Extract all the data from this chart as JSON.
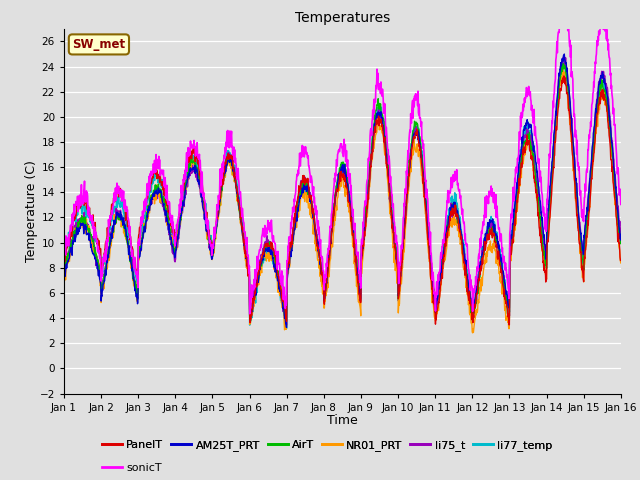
{
  "title": "Temperatures",
  "xlabel": "Time",
  "ylabel": "Temperature (C)",
  "xlim": [
    0,
    15
  ],
  "ylim": [
    -2,
    27
  ],
  "yticks": [
    -2,
    0,
    2,
    4,
    6,
    8,
    10,
    12,
    14,
    16,
    18,
    20,
    22,
    24,
    26
  ],
  "xtick_labels": [
    "Jan 1",
    "Jan 2",
    "Jan 3",
    "Jan 4",
    "Jan 5",
    "Jan 6",
    "Jan 7",
    "Jan 8",
    "Jan 9",
    "Jan 10",
    "Jan 11",
    "Jan 12",
    "Jan 13",
    "Jan 14",
    "Jan 15",
    "Jan 16"
  ],
  "annotation_text": "SW_met",
  "annotation_bg": "#ffffcc",
  "annotation_edge": "#886600",
  "annotation_text_color": "#880000",
  "bg_color": "#e0e0e0",
  "plot_bg": "#e0e0e0",
  "grid_color": "#ffffff",
  "series_colors": {
    "PanelT": "#dd0000",
    "AM25T_PRT": "#0000cc",
    "AirT": "#00bb00",
    "NR01_PRT": "#ff9900",
    "li75_t": "#9900bb",
    "li77_temp": "#00bbcc",
    "sonicT": "#ff00ff"
  },
  "series_lw": {
    "PanelT": 1.0,
    "AM25T_PRT": 1.0,
    "AirT": 1.0,
    "NR01_PRT": 1.0,
    "li75_t": 1.2,
    "li77_temp": 1.2,
    "sonicT": 1.2
  },
  "figwidth": 6.4,
  "figheight": 4.8,
  "dpi": 100
}
